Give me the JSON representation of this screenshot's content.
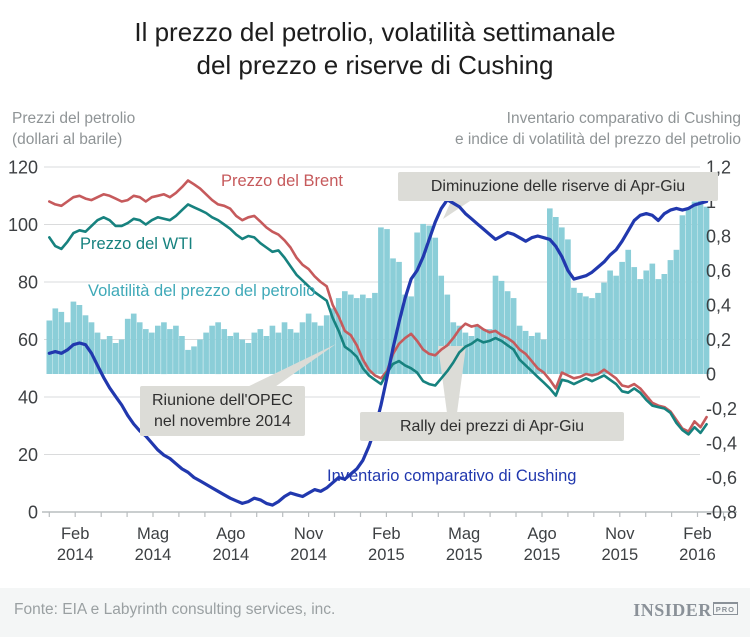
{
  "title": {
    "line1": "Il prezzo del petrolio, volatilità settimanale",
    "line2": "del prezzo e riserve di Cushing"
  },
  "axes": {
    "left_header": [
      "Prezzi del petrolio",
      "(dollari al barile)"
    ],
    "right_header": [
      "Inventario comparativo di Cushing",
      "e indice di volatilità del prezzo del petrolio"
    ],
    "left_ticks": [
      "120",
      "100",
      "80",
      "60",
      "40",
      "20",
      "0"
    ],
    "right_ticks": [
      "1,2",
      "1",
      "0,8",
      "0,6",
      "0,4",
      "0,2",
      "0",
      "-0,2",
      "-0,4",
      "-0,6",
      "-0,8"
    ],
    "x_labels": [
      {
        "month": "Feb",
        "year": "2014"
      },
      {
        "month": "Mag",
        "year": "2014"
      },
      {
        "month": "Ago",
        "year": "2014"
      },
      {
        "month": "Nov",
        "year": "2014"
      },
      {
        "month": "Feb",
        "year": "2015"
      },
      {
        "month": "Mag",
        "year": "2015"
      },
      {
        "month": "Ago",
        "year": "2015"
      },
      {
        "month": "Nov",
        "year": "2015"
      },
      {
        "month": "Feb",
        "year": "2016"
      }
    ]
  },
  "series_labels": {
    "brent": "Prezzo del Brent",
    "wti": "Prezzo del WTI",
    "volatility": "Volatilità del prezzo del petrolio",
    "cushing": "Inventario comparativo di Cushing"
  },
  "annotations": [
    {
      "text": "Diminuzione delle riserve di Apr-Giu"
    },
    {
      "line1": "Riunione dell'OPEC",
      "line2": "nel novembre 2014"
    },
    {
      "text": "Rally dei prezzi di Apr-Giu"
    }
  ],
  "footer": {
    "source": "Fonte: EIA e Labyrinth consulting services, inc.",
    "brand": "INSIDER",
    "brand_suffix": "PRO"
  },
  "colors": {
    "brent": "#c65a5c",
    "wti": "#17827f",
    "cushing": "#2138ae",
    "volatility_bar": "#8bced8",
    "volatility_label": "#3fa9b8",
    "grid": "#dadbdc",
    "axis": "#b9bdbf",
    "tick_text": "#3d4043",
    "annotation_bg": "#dcdcd7"
  },
  "chart_data": {
    "type": "combo",
    "description": "Linee Brent e WTI su asse sinistro (dollari al barile 0-120); linea inventario Cushing e barre di volatilità su asse destro (-0,8 a 1,2). Dati settimanali da gennaio 2014 a febbraio 2016.",
    "x_axis": {
      "frequency": "settimanale",
      "start": "Gen 2014",
      "end": "Feb 2016",
      "tick_months": [
        "Feb 2014",
        "Mag 2014",
        "Ago 2014",
        "Nov 2014",
        "Feb 2015",
        "Mag 2015",
        "Ago 2015",
        "Nov 2015",
        "Feb 2016"
      ]
    },
    "left_axis": {
      "label": "Prezzi del petrolio (dollari al barile)",
      "range": [
        0,
        120
      ],
      "tick_step": 20
    },
    "right_axis": {
      "label": "Inventario comparativo di Cushing e indice di volatilità del prezzo del petrolio",
      "range": [
        -0.8,
        1.2
      ],
      "tick_step": 0.2
    },
    "series": {
      "brent": [
        108,
        107,
        106.5,
        108,
        109.5,
        110,
        109,
        108.5,
        109.5,
        110.5,
        110,
        109,
        108,
        108.5,
        110,
        109.5,
        108,
        109.5,
        110,
        110.5,
        109.5,
        111,
        113,
        115.3,
        114,
        112.5,
        110.5,
        108.5,
        107,
        106.5,
        105.5,
        103,
        101.5,
        102.5,
        103,
        101,
        99,
        97.5,
        96.5,
        94.5,
        92,
        88.5,
        86,
        84.5,
        82,
        80,
        78.5,
        72,
        68,
        63,
        61.5,
        58,
        53,
        49.5,
        47.5,
        46.5,
        49,
        55,
        58.5,
        60.5,
        62,
        59.5,
        56.5,
        55,
        54.5,
        56.5,
        58,
        60.5,
        63.5,
        65.5,
        64.5,
        65,
        63.5,
        62.5,
        63,
        61.5,
        60.5,
        59,
        56.5,
        55,
        52.5,
        50,
        48.5,
        46,
        43,
        48.5,
        47.5,
        46.5,
        47,
        48,
        47.5,
        48,
        49.5,
        48,
        46.5,
        44,
        43.5,
        44.5,
        43,
        40.5,
        38,
        37,
        36.5,
        35,
        32,
        29,
        28,
        31.5,
        29.5,
        33
      ],
      "wti": [
        95.5,
        92.5,
        91.5,
        94,
        97,
        98,
        97.5,
        99.5,
        101.5,
        102.5,
        101.5,
        99.5,
        99.5,
        100.5,
        102,
        101.5,
        100,
        101.5,
        102.5,
        102,
        101.5,
        103,
        105,
        107,
        106,
        105,
        104,
        102.5,
        101.5,
        100,
        98.5,
        96.5,
        95,
        96,
        95.5,
        93.5,
        92,
        90.5,
        91,
        88.5,
        85.5,
        82.5,
        80.5,
        78.5,
        76.5,
        75,
        73.5,
        67.5,
        63,
        57.5,
        56,
        54,
        50,
        47.5,
        46,
        44.5,
        48.5,
        51.5,
        52.5,
        51,
        50,
        48.5,
        45.5,
        44.5,
        44,
        46.5,
        49,
        52,
        55.5,
        57.5,
        58.5,
        60,
        59,
        59.5,
        60.5,
        59.5,
        58,
        56.5,
        53,
        51,
        49,
        47,
        45,
        43,
        40.5,
        46,
        45.5,
        44.5,
        45.5,
        46.5,
        45.5,
        46.5,
        47.5,
        46,
        44.5,
        42,
        41.5,
        43,
        41.5,
        39,
        37,
        36.5,
        36,
        34.5,
        31,
        28.5,
        27,
        29.5,
        27.5,
        30.5
      ],
      "cushing": [
        0.12,
        0.13,
        0.12,
        0.14,
        0.17,
        0.18,
        0.17,
        0.12,
        0.05,
        -0.02,
        -0.08,
        -0.13,
        -0.18,
        -0.24,
        -0.29,
        -0.33,
        -0.36,
        -0.4,
        -0.44,
        -0.47,
        -0.49,
        -0.52,
        -0.55,
        -0.57,
        -0.6,
        -0.62,
        -0.64,
        -0.66,
        -0.68,
        -0.7,
        -0.72,
        -0.735,
        -0.75,
        -0.74,
        -0.72,
        -0.73,
        -0.75,
        -0.76,
        -0.74,
        -0.71,
        -0.69,
        -0.7,
        -0.71,
        -0.69,
        -0.67,
        -0.68,
        -0.66,
        -0.63,
        -0.6,
        -0.61,
        -0.58,
        -0.55,
        -0.5,
        -0.42,
        -0.32,
        -0.18,
        -0.02,
        0.15,
        0.3,
        0.44,
        0.55,
        0.6,
        0.68,
        0.78,
        0.88,
        0.96,
        1.01,
        0.99,
        0.97,
        0.93,
        0.9,
        0.87,
        0.84,
        0.81,
        0.78,
        0.8,
        0.82,
        0.81,
        0.79,
        0.77,
        0.79,
        0.8,
        0.79,
        0.78,
        0.74,
        0.68,
        0.6,
        0.55,
        0.56,
        0.57,
        0.59,
        0.62,
        0.65,
        0.69,
        0.72,
        0.77,
        0.83,
        0.89,
        0.92,
        0.93,
        0.92,
        0.89,
        0.93,
        0.95,
        0.96,
        0.95,
        0.96,
        0.98,
        0.99,
        1.0
      ],
      "volatility": [
        0.31,
        0.38,
        0.36,
        0.3,
        0.42,
        0.4,
        0.34,
        0.3,
        0.24,
        0.2,
        0.22,
        0.18,
        0.2,
        0.32,
        0.35,
        0.3,
        0.26,
        0.24,
        0.28,
        0.3,
        0.26,
        0.28,
        0.22,
        0.14,
        0.16,
        0.2,
        0.24,
        0.28,
        0.3,
        0.26,
        0.22,
        0.24,
        0.2,
        0.18,
        0.24,
        0.26,
        0.22,
        0.28,
        0.24,
        0.3,
        0.26,
        0.24,
        0.3,
        0.35,
        0.3,
        0.28,
        0.34,
        0.38,
        0.44,
        0.48,
        0.46,
        0.44,
        0.46,
        0.44,
        0.47,
        0.85,
        0.84,
        0.67,
        0.65,
        0.46,
        0.45,
        0.82,
        0.87,
        0.86,
        0.79,
        0.57,
        0.46,
        0.3,
        0.28,
        0.24,
        0.22,
        0.28,
        0.26,
        0.26,
        0.57,
        0.54,
        0.48,
        0.44,
        0.28,
        0.25,
        0.22,
        0.24,
        0.2,
        0.96,
        0.91,
        0.85,
        0.78,
        0.5,
        0.47,
        0.45,
        0.44,
        0.47,
        0.53,
        0.6,
        0.57,
        0.65,
        0.72,
        0.62,
        0.55,
        0.6,
        0.64,
        0.55,
        0.58,
        0.66,
        0.72,
        0.92,
        0.96,
        1.0,
        1.02,
        0.97
      ]
    }
  }
}
